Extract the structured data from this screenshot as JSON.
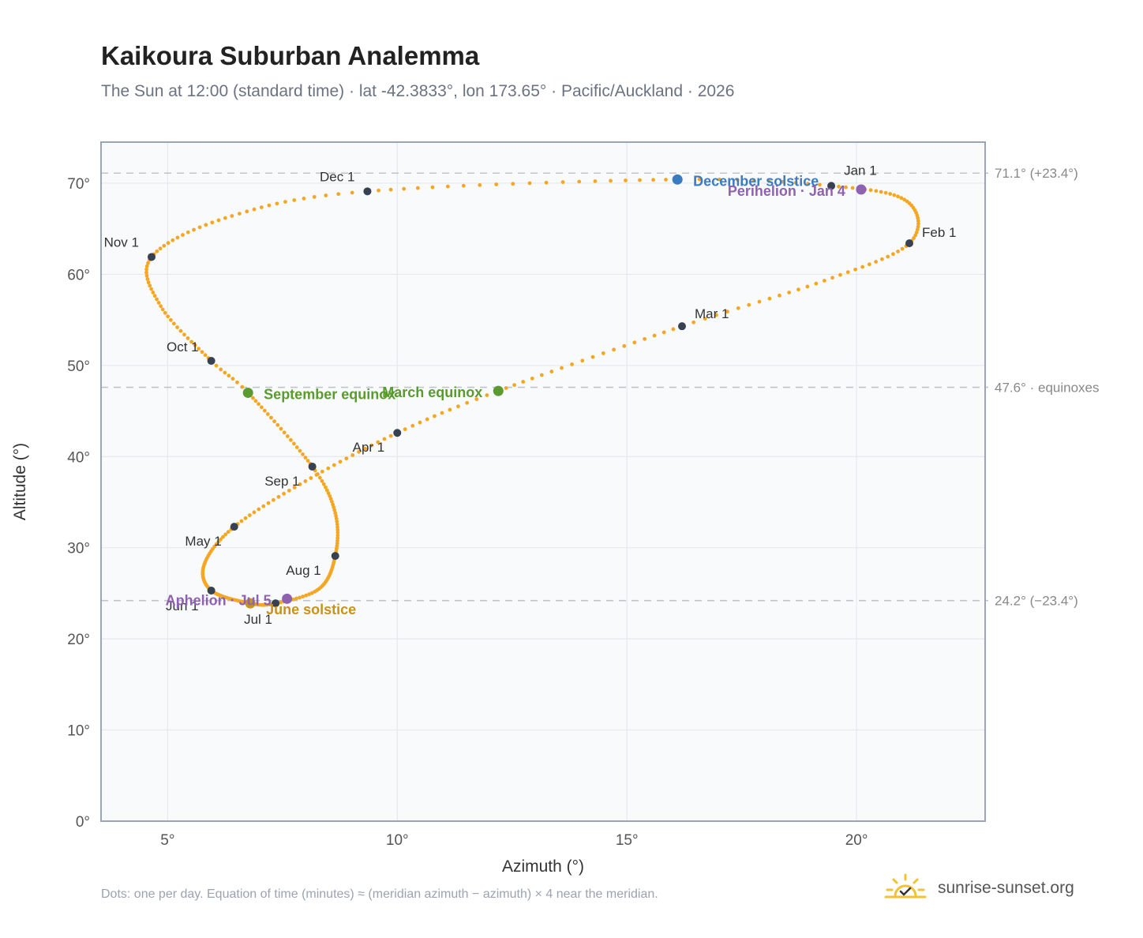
{
  "title": "Kaikoura Suburban Analemma",
  "subtitle": "The Sun at 12:00 (standard time) · lat -42.3833°, lon 173.65° · Pacific/Auckland · 2026",
  "footnote": "Dots: one per day. Equation of time (minutes) ≈ (meridian azimuth − azimuth) × 4 near the meridian.",
  "brand": {
    "name": "sunrise-sunset.org",
    "icon": "sun-check-icon"
  },
  "colors": {
    "curve": "#f5a623",
    "month_dot": "#374151",
    "equinox": "#5a9a2e",
    "december_solstice": "#3b7bc0",
    "june_solstice": "#c9921a",
    "perihelion": "#8e62b0",
    "aphelion": "#8e62b0",
    "reference_line": "#c0c4ca",
    "plot_background": "#f8fafc",
    "grid": "#e5e9ee",
    "frame": "#9aa5b5"
  },
  "chart_data": {
    "type": "scatter",
    "title": "Kaikoura Suburban Analemma",
    "xlabel": "Azimuth (°)",
    "ylabel": "Altitude (°)",
    "xlim": [
      3.55,
      22.8
    ],
    "ylim": [
      0,
      74.5
    ],
    "x_ticks": [
      {
        "value": 5,
        "label": "5°"
      },
      {
        "value": 10,
        "label": "10°"
      },
      {
        "value": 15,
        "label": "15°"
      },
      {
        "value": 20,
        "label": "20°"
      }
    ],
    "y_ticks": [
      {
        "value": 0,
        "label": "0°"
      },
      {
        "value": 10,
        "label": "10°"
      },
      {
        "value": 20,
        "label": "20°"
      },
      {
        "value": 30,
        "label": "30°"
      },
      {
        "value": 40,
        "label": "40°"
      },
      {
        "value": 50,
        "label": "50°"
      },
      {
        "value": 60,
        "label": "60°"
      },
      {
        "value": 70,
        "label": "70°"
      }
    ],
    "grid": true,
    "daily_dots": "one per day",
    "reference_lines": [
      {
        "value": 71.1,
        "label": "71.1° (+23.4°)"
      },
      {
        "value": 47.6,
        "label": "47.6° · equinoxes"
      },
      {
        "value": 24.2,
        "label": "24.2° (−23.4°)"
      }
    ],
    "month_markers": [
      {
        "label": "Jan 1",
        "x": 19.45,
        "y": 69.7
      },
      {
        "label": "Feb 1",
        "x": 21.15,
        "y": 63.4
      },
      {
        "label": "Mar 1",
        "x": 16.2,
        "y": 54.3
      },
      {
        "label": "Apr 1",
        "x": 10.0,
        "y": 42.6
      },
      {
        "label": "May 1",
        "x": 6.45,
        "y": 32.3
      },
      {
        "label": "Jun 1",
        "x": 5.95,
        "y": 25.3
      },
      {
        "label": "Jul 1",
        "x": 7.35,
        "y": 23.9
      },
      {
        "label": "Aug 1",
        "x": 8.65,
        "y": 29.1
      },
      {
        "label": "Sep 1",
        "x": 8.15,
        "y": 38.9
      },
      {
        "label": "Oct 1",
        "x": 5.95,
        "y": 50.5
      },
      {
        "label": "Nov 1",
        "x": 4.65,
        "y": 61.9
      },
      {
        "label": "Dec 1",
        "x": 9.35,
        "y": 69.1
      }
    ],
    "events": [
      {
        "label": "December solstice",
        "x": 16.1,
        "y": 70.4,
        "color": "#3b7bc0"
      },
      {
        "label": "Perihelion · Jan 4",
        "x": 20.1,
        "y": 69.3,
        "color": "#8e62b0"
      },
      {
        "label": "March equinox",
        "x": 12.2,
        "y": 47.2,
        "color": "#5a9a2e"
      },
      {
        "label": "September equinox",
        "x": 6.75,
        "y": 47.0,
        "color": "#5a9a2e"
      },
      {
        "label": "June solstice",
        "x": 6.8,
        "y": 23.9,
        "color": "#c9921a"
      },
      {
        "label": "Aphelion · Jul 5",
        "x": 7.6,
        "y": 24.4,
        "color": "#8e62b0"
      }
    ],
    "path_anchors": [
      {
        "day": 0,
        "x": 19.45,
        "y": 69.7
      },
      {
        "day": 15,
        "x": 21.1,
        "y": 68.0
      },
      {
        "day": 31,
        "x": 21.15,
        "y": 63.4
      },
      {
        "day": 45,
        "x": 19.3,
        "y": 59.3
      },
      {
        "day": 59,
        "x": 16.2,
        "y": 54.3
      },
      {
        "day": 78,
        "x": 12.2,
        "y": 47.2
      },
      {
        "day": 90,
        "x": 10.0,
        "y": 42.6
      },
      {
        "day": 105,
        "x": 8.0,
        "y": 37.3
      },
      {
        "day": 120,
        "x": 6.45,
        "y": 32.3
      },
      {
        "day": 136,
        "x": 5.8,
        "y": 28.2
      },
      {
        "day": 151,
        "x": 5.95,
        "y": 25.3
      },
      {
        "day": 171,
        "x": 6.8,
        "y": 23.9
      },
      {
        "day": 181,
        "x": 7.35,
        "y": 23.9
      },
      {
        "day": 196,
        "x": 8.3,
        "y": 25.5
      },
      {
        "day": 212,
        "x": 8.65,
        "y": 29.1
      },
      {
        "day": 228,
        "x": 8.65,
        "y": 33.8
      },
      {
        "day": 243,
        "x": 8.15,
        "y": 38.9
      },
      {
        "day": 265,
        "x": 6.75,
        "y": 47.0
      },
      {
        "day": 273,
        "x": 5.95,
        "y": 50.5
      },
      {
        "day": 289,
        "x": 4.85,
        "y": 56.5
      },
      {
        "day": 304,
        "x": 4.65,
        "y": 61.9
      },
      {
        "day": 320,
        "x": 6.4,
        "y": 66.4
      },
      {
        "day": 334,
        "x": 9.35,
        "y": 69.1
      },
      {
        "day": 355,
        "x": 16.1,
        "y": 70.4
      },
      {
        "day": 365,
        "x": 19.45,
        "y": 69.7
      }
    ]
  }
}
